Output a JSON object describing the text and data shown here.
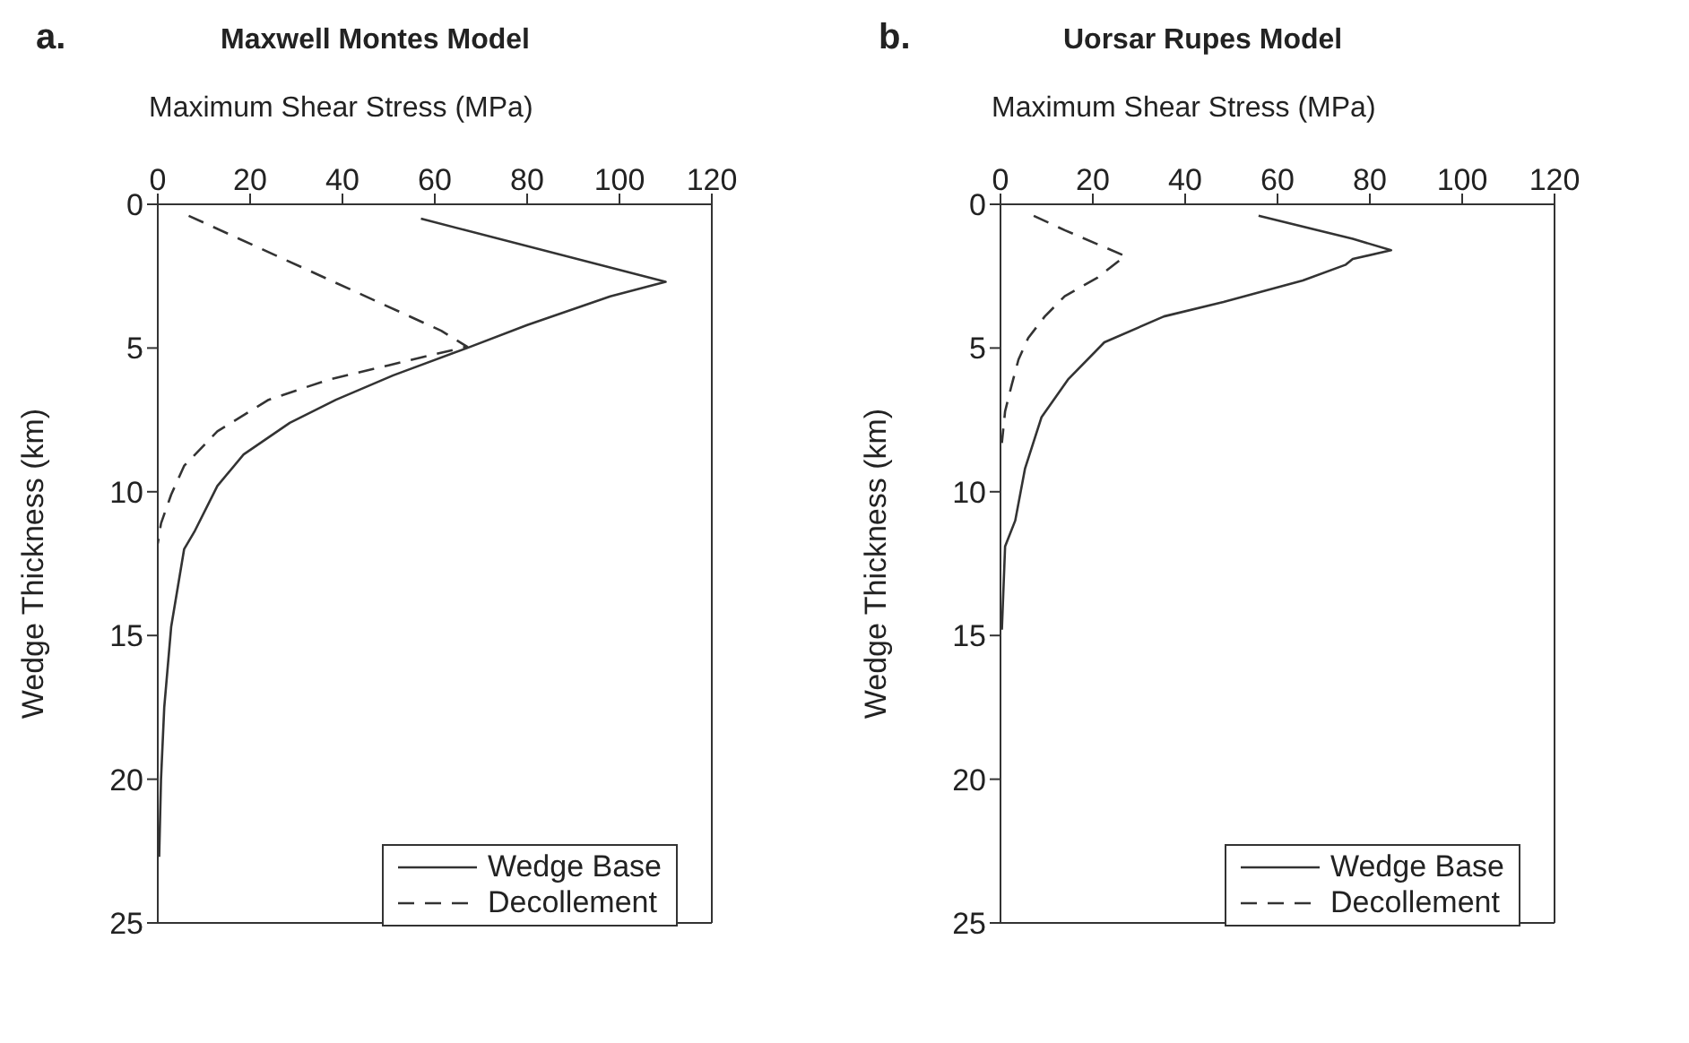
{
  "chart_data": [
    {
      "type": "line",
      "title": "Maxwell Montes Model",
      "annotations": [
        "a."
      ],
      "xlabel": "Maximum Shear Stress (MPa)",
      "ylabel": "Wedge Thickness (km)",
      "xlim": [
        0,
        120
      ],
      "xticks": [
        0,
        20,
        40,
        60,
        80,
        100,
        120
      ],
      "ylim": [
        25,
        0
      ],
      "yticks": [
        0,
        5,
        10,
        15,
        20,
        25
      ],
      "legend": "bottom right",
      "marker": "none",
      "series": [
        {
          "name": "Wedge Base",
          "color": "#333333",
          "line_style": "solid",
          "x": [
            57,
            110,
            98,
            80,
            67,
            51,
            38.6,
            28.6,
            18.6,
            12.9,
            7.9,
            5.7,
            2.9,
            1.4,
            0.7,
            0.3
          ],
          "values": [
            0.5,
            2.7,
            3.2,
            4.2,
            5,
            5.95,
            6.8,
            7.6,
            8.7,
            9.8,
            11.4,
            12,
            14.7,
            17.5,
            20,
            22.7
          ]
        },
        {
          "name": "Decollement",
          "color": "#333333",
          "line_style": "dashed",
          "x": [
            6.7,
            61.4,
            67,
            50,
            37,
            24,
            12.9,
            5.7,
            2.9,
            0.7,
            0
          ],
          "values": [
            0.4,
            4.4,
            4.95,
            5.6,
            6.1,
            6.8,
            7.9,
            9.1,
            10.1,
            11.1,
            11.8
          ]
        }
      ]
    },
    {
      "type": "line",
      "title": "Uorsar Rupes Model",
      "annotations": [
        "b."
      ],
      "xlabel": "Maximum Shear Stress (MPa)",
      "ylabel": "Wedge Thickness (km)",
      "xlim": [
        0,
        120
      ],
      "xticks": [
        0,
        20,
        40,
        60,
        80,
        100,
        120
      ],
      "ylim": [
        25,
        0
      ],
      "yticks": [
        0,
        5,
        10,
        15,
        20,
        25
      ],
      "legend": "bottom right",
      "marker": "none",
      "series": [
        {
          "name": "Wedge Base",
          "color": "#333333",
          "line_style": "solid",
          "x": [
            55.9,
            76.3,
            84.6,
            76.3,
            74.8,
            65.5,
            48.3,
            35.4,
            22.5,
            14.6,
            8.9,
            5.3,
            3.2,
            1,
            0.3
          ],
          "values": [
            0.4,
            1.2,
            1.6,
            1.9,
            2.1,
            2.65,
            3.4,
            3.9,
            4.8,
            6.1,
            7.4,
            9.2,
            11,
            11.9,
            14.8
          ]
        },
        {
          "name": "Decollement",
          "color": "#333333",
          "line_style": "dashed",
          "x": [
            7.2,
            13.9,
            27,
            21,
            13.9,
            9.6,
            6,
            3.9,
            2.4,
            1,
            0.3
          ],
          "values": [
            0.4,
            0.9,
            1.8,
            2.55,
            3.2,
            3.9,
            4.65,
            5.4,
            6.3,
            7.2,
            8.3
          ]
        }
      ]
    }
  ]
}
